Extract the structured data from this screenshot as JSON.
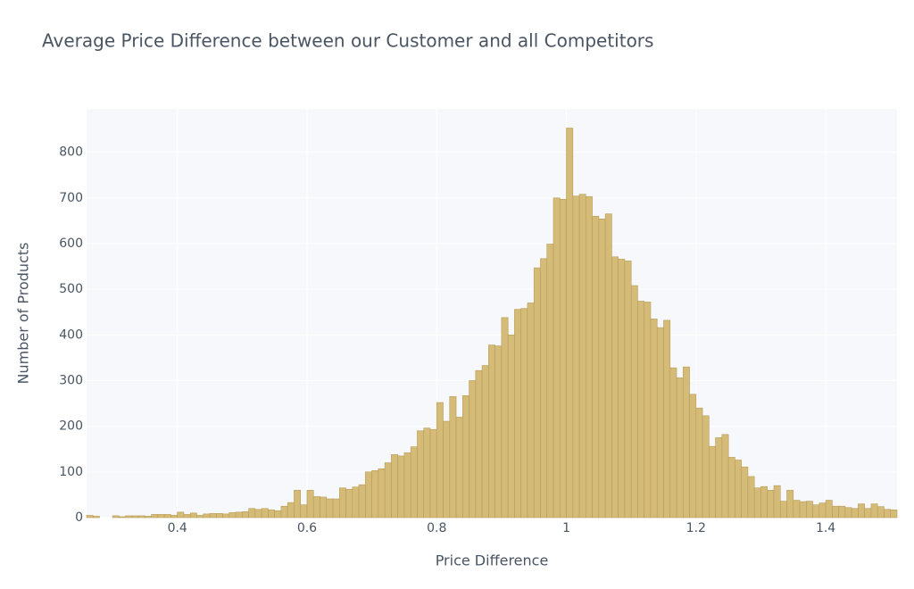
{
  "chart_data": {
    "type": "histogram",
    "title": "Average Price Difference between our Customer and all Competitors",
    "x_label": "Price Difference",
    "y_label": "Number of Products",
    "color": "#d5bb78",
    "edge_color": "#b99c55",
    "bins": [
      0.26,
      0.27,
      0.28,
      0.29,
      0.3,
      0.31,
      0.32,
      0.33,
      0.34,
      0.35,
      0.36,
      0.37,
      0.38,
      0.39,
      0.4,
      0.41,
      0.42,
      0.43,
      0.44,
      0.45,
      0.46,
      0.47,
      0.48,
      0.49,
      0.5,
      0.51,
      0.52,
      0.53,
      0.54,
      0.55,
      0.56,
      0.57,
      0.58,
      0.59,
      0.6,
      0.61,
      0.62,
      0.63,
      0.64,
      0.65,
      0.66,
      0.67,
      0.68,
      0.69,
      0.7,
      0.71,
      0.72,
      0.73,
      0.74,
      0.75,
      0.76,
      0.77,
      0.78,
      0.79,
      0.8,
      0.81,
      0.82,
      0.83,
      0.84,
      0.85,
      0.86,
      0.87,
      0.88,
      0.89,
      0.9,
      0.91,
      0.92,
      0.93,
      0.94,
      0.95,
      0.96,
      0.97,
      0.98,
      0.99,
      1.0,
      1.01,
      1.02,
      1.03,
      1.04,
      1.05,
      1.06,
      1.07,
      1.08,
      1.09,
      1.1,
      1.11,
      1.12,
      1.13,
      1.14,
      1.15,
      1.16,
      1.17,
      1.18,
      1.19,
      1.2,
      1.21,
      1.22,
      1.23,
      1.24,
      1.25,
      1.26,
      1.27,
      1.28,
      1.29,
      1.3,
      1.31,
      1.32,
      1.33,
      1.34,
      1.35,
      1.36,
      1.37,
      1.38,
      1.39,
      1.4,
      1.41,
      1.42,
      1.43,
      1.44,
      1.45,
      1.46,
      1.47,
      1.48,
      1.49,
      1.5,
      1.51
    ],
    "values": [
      5,
      3,
      0,
      0,
      4,
      2,
      4,
      4,
      4,
      3,
      7,
      7,
      7,
      5,
      12,
      7,
      10,
      5,
      8,
      9,
      9,
      8,
      11,
      12,
      13,
      20,
      18,
      20,
      17,
      15,
      25,
      33,
      60,
      28,
      60,
      46,
      45,
      41,
      41,
      65,
      62,
      67,
      72,
      100,
      103,
      107,
      120,
      138,
      135,
      142,
      155,
      190,
      196,
      193,
      252,
      211,
      265,
      220,
      267,
      300,
      322,
      333,
      378,
      376,
      438,
      400,
      456,
      458,
      470,
      547,
      567,
      599,
      700,
      697,
      853,
      704,
      708,
      703,
      660,
      654,
      665,
      571,
      566,
      562,
      508,
      474,
      472,
      435,
      416,
      432,
      328,
      306,
      330,
      270,
      240,
      223,
      156,
      175,
      182,
      132,
      126,
      111,
      90,
      65,
      68,
      60,
      70,
      36,
      60,
      38,
      35,
      36,
      28,
      32,
      38,
      25,
      25,
      22,
      20,
      30,
      20,
      30,
      24,
      18,
      17
    ],
    "xlim": [
      0.26,
      1.51
    ],
    "ylim": [
      0,
      895
    ],
    "xticks": [
      0.4,
      0.6,
      0.8,
      1,
      1.2,
      1.4
    ],
    "yticks": [
      0,
      100,
      200,
      300,
      400,
      500,
      600,
      700,
      800
    ],
    "grid": true
  }
}
